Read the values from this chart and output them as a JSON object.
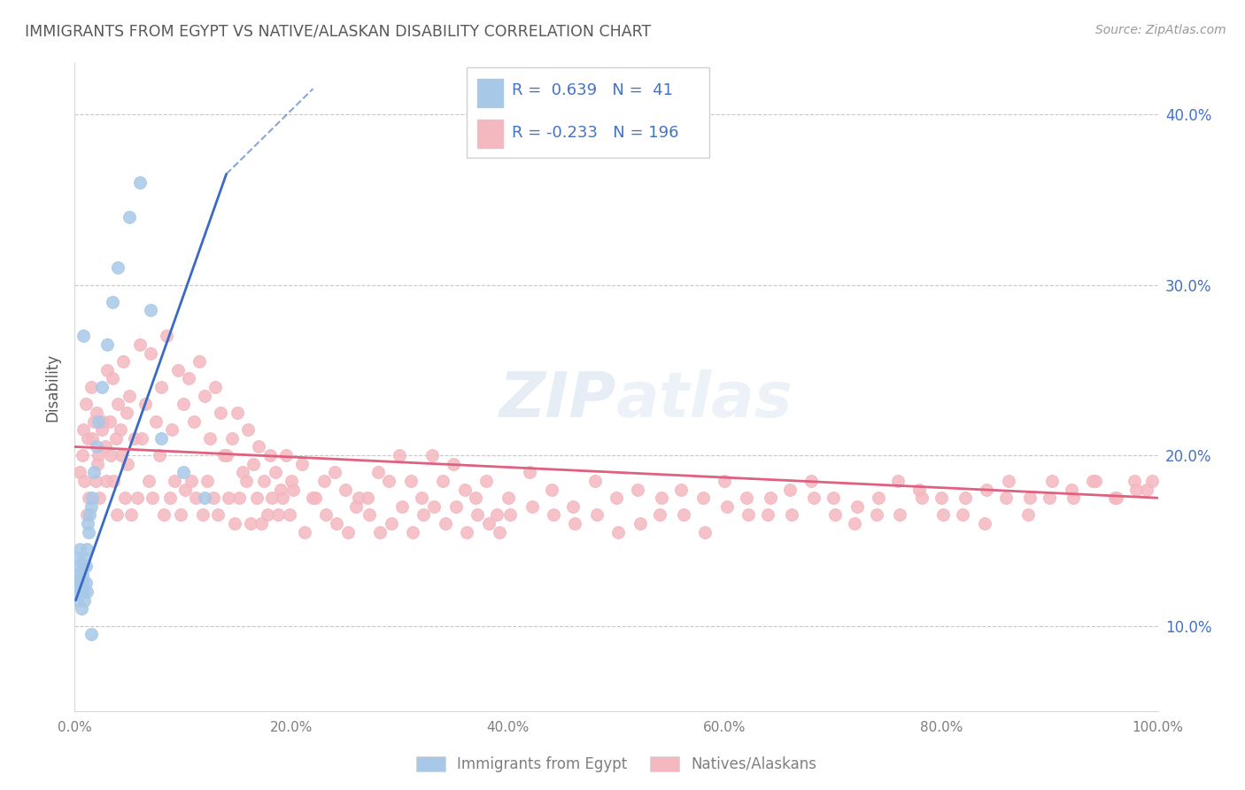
{
  "title": "IMMIGRANTS FROM EGYPT VS NATIVE/ALASKAN DISABILITY CORRELATION CHART",
  "source": "Source: ZipAtlas.com",
  "ylabel": "Disability",
  "watermark": "ZIPAtlas",
  "blue_R": 0.639,
  "blue_N": 41,
  "pink_R": -0.233,
  "pink_N": 196,
  "blue_color": "#a8c8e8",
  "pink_color": "#f4b8c0",
  "blue_line_color": "#3a6bc4",
  "pink_line_color": "#e06080",
  "title_color": "#595959",
  "axis_label_color": "#595959",
  "tick_color": "#7f7f7f",
  "grid_color": "#c8c8c8",
  "legend_text_color": "#4472c4",
  "right_tick_color": "#4472c4",
  "xlim": [
    0.0,
    1.0
  ],
  "ylim": [
    0.05,
    0.43
  ],
  "x_ticks": [
    0.0,
    0.2,
    0.4,
    0.6,
    0.8,
    1.0
  ],
  "x_tick_labels": [
    "0.0%",
    "20.0%",
    "40.0%",
    "60.0%",
    "80.0%",
    "100.0%"
  ],
  "y_ticks": [
    0.1,
    0.2,
    0.3,
    0.4
  ],
  "y_tick_labels": [
    "10.0%",
    "20.0%",
    "30.0%",
    "40.0%"
  ],
  "blue_scatter_x": [
    0.001,
    0.002,
    0.002,
    0.003,
    0.003,
    0.004,
    0.004,
    0.005,
    0.005,
    0.006,
    0.006,
    0.007,
    0.007,
    0.008,
    0.008,
    0.009,
    0.009,
    0.01,
    0.01,
    0.011,
    0.011,
    0.012,
    0.013,
    0.014,
    0.015,
    0.016,
    0.018,
    0.02,
    0.022,
    0.025,
    0.03,
    0.035,
    0.04,
    0.05,
    0.06,
    0.07,
    0.08,
    0.1,
    0.12,
    0.015,
    0.008
  ],
  "blue_scatter_y": [
    0.125,
    0.13,
    0.115,
    0.12,
    0.14,
    0.135,
    0.125,
    0.13,
    0.145,
    0.12,
    0.11,
    0.13,
    0.125,
    0.135,
    0.12,
    0.14,
    0.115,
    0.135,
    0.125,
    0.145,
    0.12,
    0.16,
    0.155,
    0.165,
    0.17,
    0.175,
    0.19,
    0.205,
    0.22,
    0.24,
    0.265,
    0.29,
    0.31,
    0.34,
    0.36,
    0.285,
    0.21,
    0.19,
    0.175,
    0.095,
    0.27
  ],
  "blue_trend_x0": 0.001,
  "blue_trend_x1": 0.14,
  "blue_trend_y0": 0.115,
  "blue_trend_y1": 0.365,
  "blue_trend_dashed_x0": 0.14,
  "blue_trend_dashed_x1": 0.22,
  "blue_trend_dashed_y0": 0.365,
  "blue_trend_dashed_y1": 0.415,
  "pink_trend_x0": 0.0,
  "pink_trend_x1": 1.0,
  "pink_trend_y0": 0.205,
  "pink_trend_y1": 0.175,
  "pink_scatter_x": [
    0.005,
    0.008,
    0.01,
    0.012,
    0.015,
    0.018,
    0.02,
    0.022,
    0.025,
    0.028,
    0.03,
    0.032,
    0.035,
    0.038,
    0.04,
    0.042,
    0.045,
    0.048,
    0.05,
    0.055,
    0.06,
    0.065,
    0.07,
    0.075,
    0.08,
    0.085,
    0.09,
    0.095,
    0.1,
    0.105,
    0.11,
    0.115,
    0.12,
    0.125,
    0.13,
    0.135,
    0.14,
    0.145,
    0.15,
    0.155,
    0.16,
    0.165,
    0.17,
    0.175,
    0.18,
    0.185,
    0.19,
    0.195,
    0.2,
    0.21,
    0.22,
    0.23,
    0.24,
    0.25,
    0.26,
    0.27,
    0.28,
    0.29,
    0.3,
    0.31,
    0.32,
    0.33,
    0.34,
    0.35,
    0.36,
    0.37,
    0.38,
    0.39,
    0.4,
    0.42,
    0.44,
    0.46,
    0.48,
    0.5,
    0.52,
    0.54,
    0.56,
    0.58,
    0.6,
    0.62,
    0.64,
    0.66,
    0.68,
    0.7,
    0.72,
    0.74,
    0.76,
    0.78,
    0.8,
    0.82,
    0.84,
    0.86,
    0.88,
    0.9,
    0.92,
    0.94,
    0.96,
    0.98,
    0.007,
    0.009,
    0.011,
    0.013,
    0.016,
    0.019,
    0.021,
    0.023,
    0.026,
    0.029,
    0.033,
    0.036,
    0.039,
    0.043,
    0.046,
    0.049,
    0.052,
    0.058,
    0.062,
    0.068,
    0.072,
    0.078,
    0.082,
    0.088,
    0.092,
    0.098,
    0.102,
    0.108,
    0.112,
    0.118,
    0.122,
    0.128,
    0.132,
    0.138,
    0.142,
    0.148,
    0.152,
    0.158,
    0.162,
    0.168,
    0.172,
    0.178,
    0.182,
    0.188,
    0.192,
    0.198,
    0.202,
    0.212,
    0.222,
    0.232,
    0.242,
    0.252,
    0.262,
    0.272,
    0.282,
    0.292,
    0.302,
    0.312,
    0.322,
    0.332,
    0.342,
    0.352,
    0.362,
    0.372,
    0.382,
    0.392,
    0.402,
    0.422,
    0.442,
    0.462,
    0.482,
    0.502,
    0.522,
    0.542,
    0.562,
    0.582,
    0.602,
    0.622,
    0.642,
    0.662,
    0.682,
    0.702,
    0.722,
    0.742,
    0.762,
    0.782,
    0.802,
    0.822,
    0.842,
    0.862,
    0.882,
    0.902,
    0.922,
    0.942,
    0.962,
    0.978,
    0.99,
    0.995
  ],
  "pink_scatter_y": [
    0.19,
    0.215,
    0.23,
    0.21,
    0.24,
    0.22,
    0.225,
    0.2,
    0.215,
    0.205,
    0.25,
    0.22,
    0.245,
    0.21,
    0.23,
    0.215,
    0.255,
    0.225,
    0.235,
    0.21,
    0.265,
    0.23,
    0.26,
    0.22,
    0.24,
    0.27,
    0.215,
    0.25,
    0.23,
    0.245,
    0.22,
    0.255,
    0.235,
    0.21,
    0.24,
    0.225,
    0.2,
    0.21,
    0.225,
    0.19,
    0.215,
    0.195,
    0.205,
    0.185,
    0.2,
    0.19,
    0.18,
    0.2,
    0.185,
    0.195,
    0.175,
    0.185,
    0.19,
    0.18,
    0.17,
    0.175,
    0.19,
    0.185,
    0.2,
    0.185,
    0.175,
    0.2,
    0.185,
    0.195,
    0.18,
    0.175,
    0.185,
    0.165,
    0.175,
    0.19,
    0.18,
    0.17,
    0.185,
    0.175,
    0.18,
    0.165,
    0.18,
    0.175,
    0.185,
    0.175,
    0.165,
    0.18,
    0.185,
    0.175,
    0.16,
    0.165,
    0.185,
    0.18,
    0.175,
    0.165,
    0.16,
    0.175,
    0.165,
    0.175,
    0.18,
    0.185,
    0.175,
    0.18,
    0.2,
    0.185,
    0.165,
    0.175,
    0.21,
    0.185,
    0.195,
    0.175,
    0.22,
    0.185,
    0.2,
    0.185,
    0.165,
    0.2,
    0.175,
    0.195,
    0.165,
    0.175,
    0.21,
    0.185,
    0.175,
    0.2,
    0.165,
    0.175,
    0.185,
    0.165,
    0.18,
    0.185,
    0.175,
    0.165,
    0.185,
    0.175,
    0.165,
    0.2,
    0.175,
    0.16,
    0.175,
    0.185,
    0.16,
    0.175,
    0.16,
    0.165,
    0.175,
    0.165,
    0.175,
    0.165,
    0.18,
    0.155,
    0.175,
    0.165,
    0.16,
    0.155,
    0.175,
    0.165,
    0.155,
    0.16,
    0.17,
    0.155,
    0.165,
    0.17,
    0.16,
    0.17,
    0.155,
    0.165,
    0.16,
    0.155,
    0.165,
    0.17,
    0.165,
    0.16,
    0.165,
    0.155,
    0.16,
    0.175,
    0.165,
    0.155,
    0.17,
    0.165,
    0.175,
    0.165,
    0.175,
    0.165,
    0.17,
    0.175,
    0.165,
    0.175,
    0.165,
    0.175,
    0.18,
    0.185,
    0.175,
    0.185,
    0.175,
    0.185,
    0.175,
    0.185,
    0.18,
    0.185
  ]
}
